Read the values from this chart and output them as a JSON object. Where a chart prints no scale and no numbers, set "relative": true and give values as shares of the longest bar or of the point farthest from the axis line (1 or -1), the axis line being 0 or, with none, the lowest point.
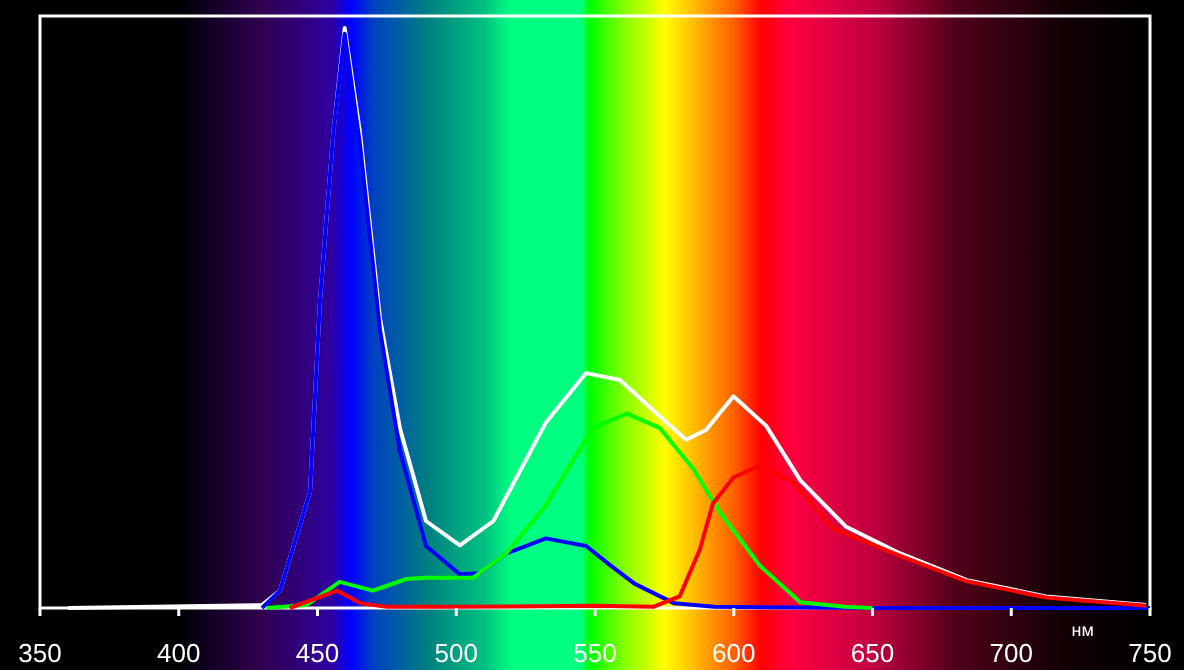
{
  "chart_data": {
    "type": "line",
    "relative": true,
    "xlabel": "нм",
    "xlim": [
      350,
      750
    ],
    "xticks": [
      350,
      400,
      450,
      500,
      550,
      600,
      650,
      700,
      750
    ],
    "grid": false,
    "line_style": "solid",
    "series": [
      {
        "color": "#ffffff",
        "x": [
          360,
          430,
          436.5,
          447.3,
          450.9,
          455.7,
          459.8,
          465.3,
          472.5,
          479.7,
          489.1,
          501.3,
          513.4,
          532.3,
          546.8,
          559,
          573.4,
          582.8,
          590,
          599.9,
          611.7,
          624,
          640.5,
          660,
          684,
          712.5,
          748.6
        ],
        "values": [
          0,
          0.005,
          0.03,
          0.2,
          0.53,
          0.82,
          1.0,
          0.82,
          0.5,
          0.31,
          0.15,
          0.108,
          0.15,
          0.32,
          0.405,
          0.393,
          0.33,
          0.29,
          0.307,
          0.365,
          0.314,
          0.22,
          0.14,
          0.094,
          0.048,
          0.02,
          0.005
        ]
      },
      {
        "color": "#0000ff",
        "x": [
          430,
          436.5,
          447.3,
          450.9,
          455.7,
          459.8,
          465.3,
          472.5,
          479.7,
          489.1,
          501.3,
          508.5,
          518,
          532.3,
          546.8,
          554.6,
          564.2,
          578.6,
          593,
          650,
          750
        ],
        "values": [
          0,
          0.03,
          0.2,
          0.53,
          0.82,
          0.99,
          0.8,
          0.48,
          0.27,
          0.107,
          0.058,
          0.06,
          0.094,
          0.12,
          0.107,
          0.077,
          0.042,
          0.008,
          0.002,
          0,
          0
        ]
      },
      {
        "color": "#00ff00",
        "x": [
          431.6,
          446,
          458,
          470,
          482,
          489,
          506,
          518,
          532,
          549,
          561.5,
          573.4,
          585.4,
          595,
          609.4,
          624,
          640,
          650
        ],
        "values": [
          0,
          0.005,
          0.045,
          0.03,
          0.05,
          0.052,
          0.052,
          0.094,
          0.175,
          0.31,
          0.335,
          0.31,
          0.24,
          0.165,
          0.073,
          0.01,
          0.002,
          0
        ]
      },
      {
        "color": "#ff0000",
        "x": [
          440,
          457,
          465.6,
          475,
          500,
          550,
          571,
          580.5,
          587.7,
          592.5,
          599.9,
          609.4,
          621.4,
          635.8,
          660,
          684,
          712.5,
          748.6
        ],
        "values": [
          0,
          0.03,
          0.008,
          0.002,
          0.002,
          0.004,
          0.002,
          0.02,
          0.1,
          0.18,
          0.225,
          0.246,
          0.217,
          0.137,
          0.09,
          0.046,
          0.018,
          0.004
        ]
      }
    ]
  }
}
